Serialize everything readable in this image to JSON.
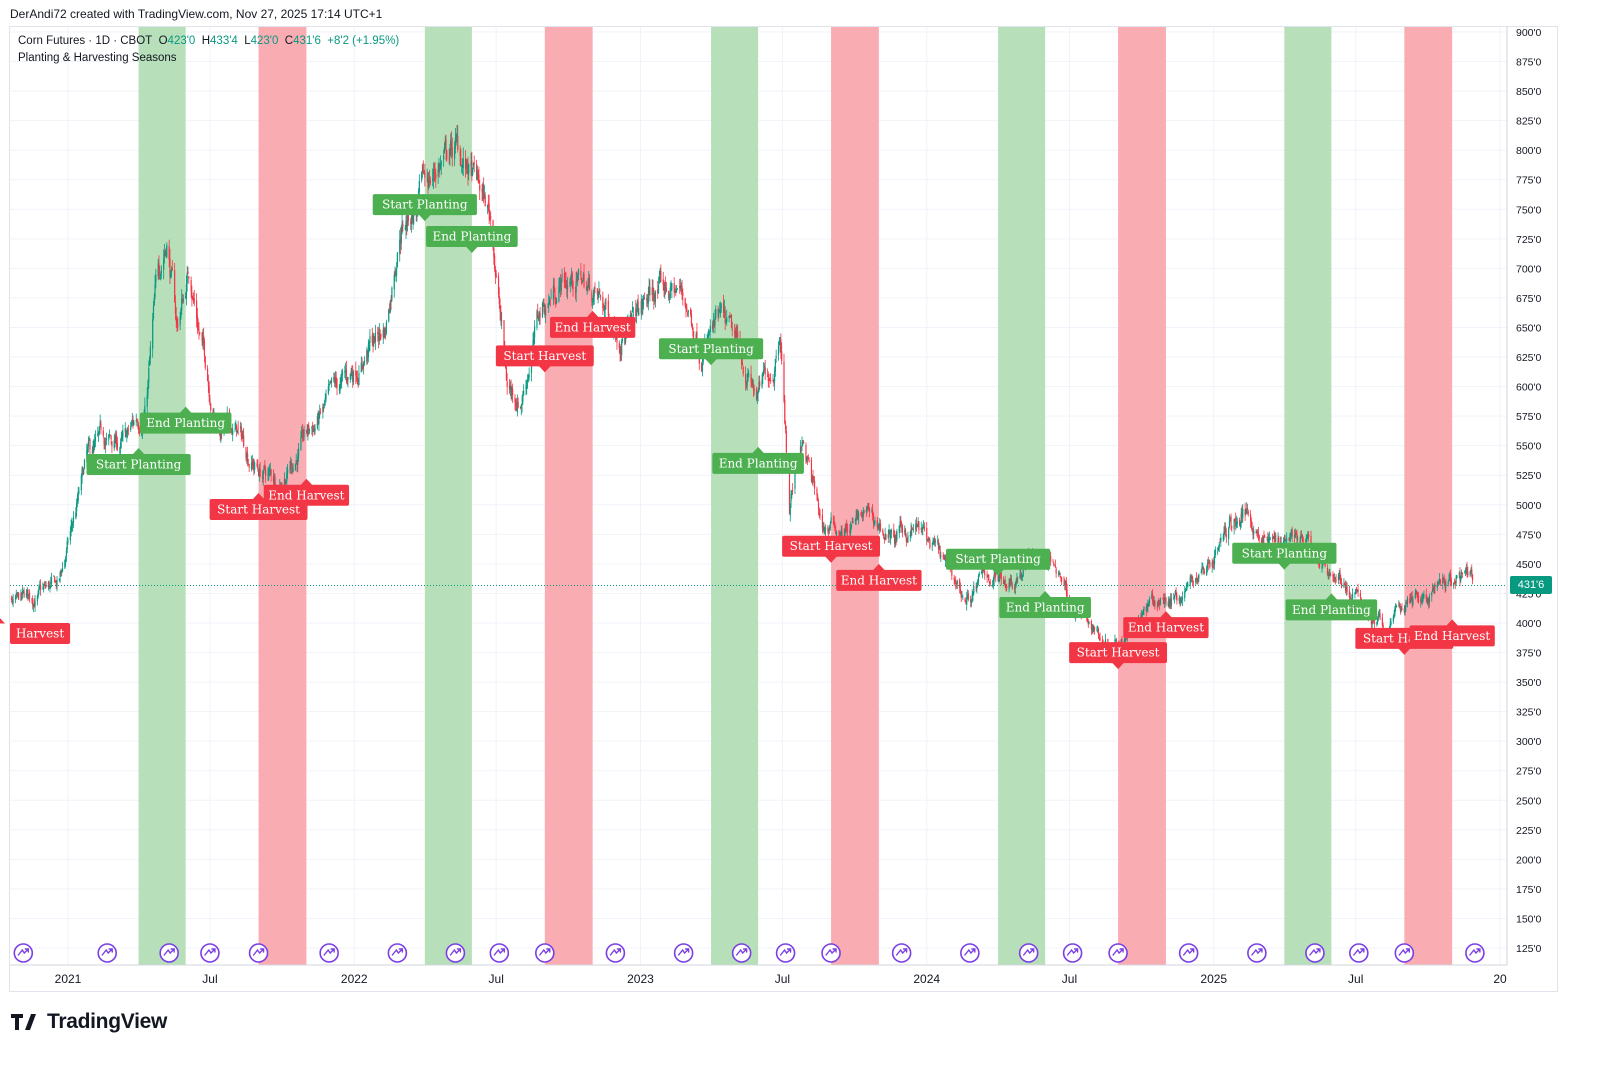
{
  "header": {
    "credit": "DerAndi72 created with TradingView.com, Nov 27, 2025 17:14 UTC+1"
  },
  "legend": {
    "symbol": "Corn Futures · 1D · CBOT",
    "open_label": "O",
    "open": "423'0",
    "high_label": "H",
    "high": "433'4",
    "low_label": "L",
    "low": "423'0",
    "close_label": "C",
    "close": "431'6",
    "change": "+8'2 (+1.95%)",
    "indicator": "Planting & Harvesting Seasons"
  },
  "price_tag": "431'6",
  "brand": {
    "name": "TradingView"
  },
  "colors": {
    "up": "#089981",
    "down": "#f23645",
    "planting_band": "#b7dfb9",
    "harvest_band": "#f9adb3",
    "planting_label": "#4caf50",
    "harvest_label": "#f23645",
    "event_icon": "#7b3fe4"
  },
  "chart_data": {
    "type": "candlestick",
    "title": "Corn Futures · 1D · CBOT",
    "subtitle": "Planting & Harvesting Seasons",
    "x_axis": {
      "ticks": [
        {
          "date": "2021-01-01",
          "label": "2021"
        },
        {
          "date": "2021-07-01",
          "label": "Jul"
        },
        {
          "date": "2022-01-01",
          "label": "2022"
        },
        {
          "date": "2022-07-01",
          "label": "Jul"
        },
        {
          "date": "2023-01-01",
          "label": "2023"
        },
        {
          "date": "2023-07-01",
          "label": "Jul"
        },
        {
          "date": "2024-01-01",
          "label": "2024"
        },
        {
          "date": "2024-07-01",
          "label": "Jul"
        },
        {
          "date": "2025-01-01",
          "label": "2025"
        },
        {
          "date": "2025-07-01",
          "label": "Jul"
        },
        {
          "date": "2026-01-01",
          "label": "20"
        }
      ]
    },
    "y_axis": {
      "range": [
        110,
        905
      ],
      "ticks": [
        "900'0",
        "875'0",
        "850'0",
        "825'0",
        "800'0",
        "775'0",
        "750'0",
        "725'0",
        "700'0",
        "675'0",
        "650'0",
        "625'0",
        "600'0",
        "575'0",
        "550'0",
        "525'0",
        "500'0",
        "475'0",
        "450'0",
        "425'0",
        "400'0",
        "375'0",
        "350'0",
        "325'0",
        "300'0",
        "275'0",
        "250'0",
        "225'0",
        "200'0",
        "175'0",
        "150'0",
        "125'0"
      ]
    },
    "last_price": 431.75,
    "price_path": [
      [
        "2020-10-01",
        400
      ],
      [
        "2020-11-15",
        420
      ],
      [
        "2020-12-20",
        430
      ],
      [
        "2021-01-10",
        490
      ],
      [
        "2021-01-25",
        535
      ],
      [
        "2021-02-15",
        550
      ],
      [
        "2021-03-15",
        550
      ],
      [
        "2021-04-10",
        585
      ],
      [
        "2021-04-25",
        690
      ],
      [
        "2021-05-07",
        730
      ],
      [
        "2021-05-20",
        650
      ],
      [
        "2021-06-05",
        700
      ],
      [
        "2021-06-20",
        640
      ],
      [
        "2021-07-10",
        570
      ],
      [
        "2021-08-05",
        560
      ],
      [
        "2021-09-01",
        530
      ],
      [
        "2021-09-25",
        520
      ],
      [
        "2021-10-15",
        540
      ],
      [
        "2021-11-15",
        570
      ],
      [
        "2021-12-20",
        600
      ],
      [
        "2022-01-15",
        630
      ],
      [
        "2022-02-10",
        650
      ],
      [
        "2022-02-28",
        740
      ],
      [
        "2022-03-20",
        750
      ],
      [
        "2022-04-20",
        790
      ],
      [
        "2022-05-10",
        800
      ],
      [
        "2022-06-05",
        770
      ],
      [
        "2022-06-25",
        740
      ],
      [
        "2022-07-15",
        600
      ],
      [
        "2022-08-01",
        590
      ],
      [
        "2022-08-25",
        660
      ],
      [
        "2022-09-20",
        690
      ],
      [
        "2022-10-20",
        690
      ],
      [
        "2022-11-20",
        660
      ],
      [
        "2022-12-20",
        650
      ],
      [
        "2023-01-20",
        680
      ],
      [
        "2023-02-20",
        680
      ],
      [
        "2023-03-20",
        640
      ],
      [
        "2023-04-15",
        650
      ],
      [
        "2023-05-10",
        620
      ],
      [
        "2023-05-31",
        590
      ],
      [
        "2023-06-20",
        620
      ],
      [
        "2023-06-28",
        660
      ],
      [
        "2023-07-10",
        500
      ],
      [
        "2023-07-25",
        560
      ],
      [
        "2023-08-20",
        480
      ],
      [
        "2023-09-20",
        480
      ],
      [
        "2023-10-20",
        490
      ],
      [
        "2023-11-20",
        470
      ],
      [
        "2023-12-20",
        480
      ],
      [
        "2024-01-20",
        450
      ],
      [
        "2024-02-20",
        420
      ],
      [
        "2024-03-20",
        440
      ],
      [
        "2024-04-20",
        440
      ],
      [
        "2024-05-20",
        460
      ],
      [
        "2024-06-20",
        440
      ],
      [
        "2024-07-10",
        410
      ],
      [
        "2024-07-25",
        400
      ],
      [
        "2024-08-20",
        385
      ],
      [
        "2024-09-20",
        405
      ],
      [
        "2024-10-20",
        415
      ],
      [
        "2024-11-20",
        425
      ],
      [
        "2024-12-20",
        445
      ],
      [
        "2025-01-20",
        480
      ],
      [
        "2025-02-15",
        495
      ],
      [
        "2025-03-15",
        465
      ],
      [
        "2025-04-10",
        480
      ],
      [
        "2025-05-10",
        455
      ],
      [
        "2025-06-10",
        440
      ],
      [
        "2025-06-30",
        420
      ],
      [
        "2025-07-20",
        405
      ],
      [
        "2025-08-10",
        390
      ],
      [
        "2025-08-20",
        410
      ],
      [
        "2025-09-15",
        420
      ],
      [
        "2025-10-15",
        425
      ],
      [
        "2025-11-15",
        435
      ],
      [
        "2025-11-27",
        431.75
      ]
    ],
    "season_bands": [
      {
        "type": "harvest",
        "start": "2020-09-15",
        "end": "2020-10-10"
      },
      {
        "type": "planting",
        "start": "2021-04-01",
        "end": "2021-05-31"
      },
      {
        "type": "harvest",
        "start": "2021-09-01",
        "end": "2021-11-01"
      },
      {
        "type": "planting",
        "start": "2022-04-01",
        "end": "2022-05-31"
      },
      {
        "type": "harvest",
        "start": "2022-09-01",
        "end": "2022-11-01"
      },
      {
        "type": "planting",
        "start": "2023-04-01",
        "end": "2023-05-31"
      },
      {
        "type": "harvest",
        "start": "2023-09-01",
        "end": "2023-11-01"
      },
      {
        "type": "planting",
        "start": "2024-04-01",
        "end": "2024-05-31"
      },
      {
        "type": "harvest",
        "start": "2024-09-01",
        "end": "2024-11-01"
      },
      {
        "type": "planting",
        "start": "2025-04-01",
        "end": "2025-05-31"
      },
      {
        "type": "harvest",
        "start": "2025-09-01",
        "end": "2025-11-01"
      }
    ],
    "annotations": [
      {
        "text": "Harvest",
        "type": "harvest",
        "date": "2020-10-05",
        "price": 405,
        "dir": "up"
      },
      {
        "text": "Start Planting",
        "type": "planting",
        "date": "2021-04-01",
        "price": 548,
        "dir": "up"
      },
      {
        "text": "End Planting",
        "type": "planting",
        "date": "2021-05-31",
        "price": 583,
        "dir": "up"
      },
      {
        "text": "Start Harvest",
        "type": "harvest",
        "date": "2021-09-01",
        "price": 510,
        "dir": "up"
      },
      {
        "text": "End Harvest",
        "type": "harvest",
        "date": "2021-11-01",
        "price": 522,
        "dir": "up"
      },
      {
        "text": "Start Planting",
        "type": "planting",
        "date": "2022-04-01",
        "price": 740,
        "dir": "down"
      },
      {
        "text": "End Planting",
        "type": "planting",
        "date": "2022-05-31",
        "price": 713,
        "dir": "down"
      },
      {
        "text": "Start Harvest",
        "type": "harvest",
        "date": "2022-09-01",
        "price": 612,
        "dir": "down"
      },
      {
        "text": "End Harvest",
        "type": "harvest",
        "date": "2022-11-01",
        "price": 664,
        "dir": "up"
      },
      {
        "text": "Start Planting",
        "type": "planting",
        "date": "2023-04-01",
        "price": 618,
        "dir": "down"
      },
      {
        "text": "End Planting",
        "type": "planting",
        "date": "2023-05-31",
        "price": 549,
        "dir": "up"
      },
      {
        "text": "Start Harvest",
        "type": "harvest",
        "date": "2023-09-01",
        "price": 451,
        "dir": "down"
      },
      {
        "text": "End Harvest",
        "type": "harvest",
        "date": "2023-11-01",
        "price": 450,
        "dir": "up"
      },
      {
        "text": "Start Planting",
        "type": "planting",
        "date": "2024-04-01",
        "price": 440,
        "dir": "down"
      },
      {
        "text": "End Planting",
        "type": "planting",
        "date": "2024-05-31",
        "price": 427,
        "dir": "up"
      },
      {
        "text": "Start Harvest",
        "type": "harvest",
        "date": "2024-09-01",
        "price": 361,
        "dir": "down"
      },
      {
        "text": "End Harvest",
        "type": "harvest",
        "date": "2024-11-01",
        "price": 410,
        "dir": "up"
      },
      {
        "text": "Start Planting",
        "type": "planting",
        "date": "2025-04-01",
        "price": 445,
        "dir": "down"
      },
      {
        "text": "End Planting",
        "type": "planting",
        "date": "2025-05-31",
        "price": 425,
        "dir": "up"
      },
      {
        "text": "Start Harvest",
        "type": "harvest",
        "date": "2025-09-01",
        "price": 373,
        "dir": "down"
      },
      {
        "text": "End Harvest",
        "type": "harvest",
        "date": "2025-11-01",
        "price": 403,
        "dir": "up"
      }
    ],
    "event_markers": [
      "2020-11-05",
      "2021-02-20",
      "2021-05-10",
      "2021-07-01",
      "2021-09-01",
      "2021-11-30",
      "2022-02-25",
      "2022-05-10",
      "2022-07-05",
      "2022-09-01",
      "2022-11-30",
      "2023-02-25",
      "2023-05-10",
      "2023-07-05",
      "2023-09-01",
      "2023-11-30",
      "2024-02-25",
      "2024-05-10",
      "2024-07-05",
      "2024-09-01",
      "2024-11-30",
      "2025-02-25",
      "2025-05-10",
      "2025-07-05",
      "2025-09-01",
      "2025-11-30"
    ],
    "grid": true,
    "legend_position": "top-left"
  }
}
